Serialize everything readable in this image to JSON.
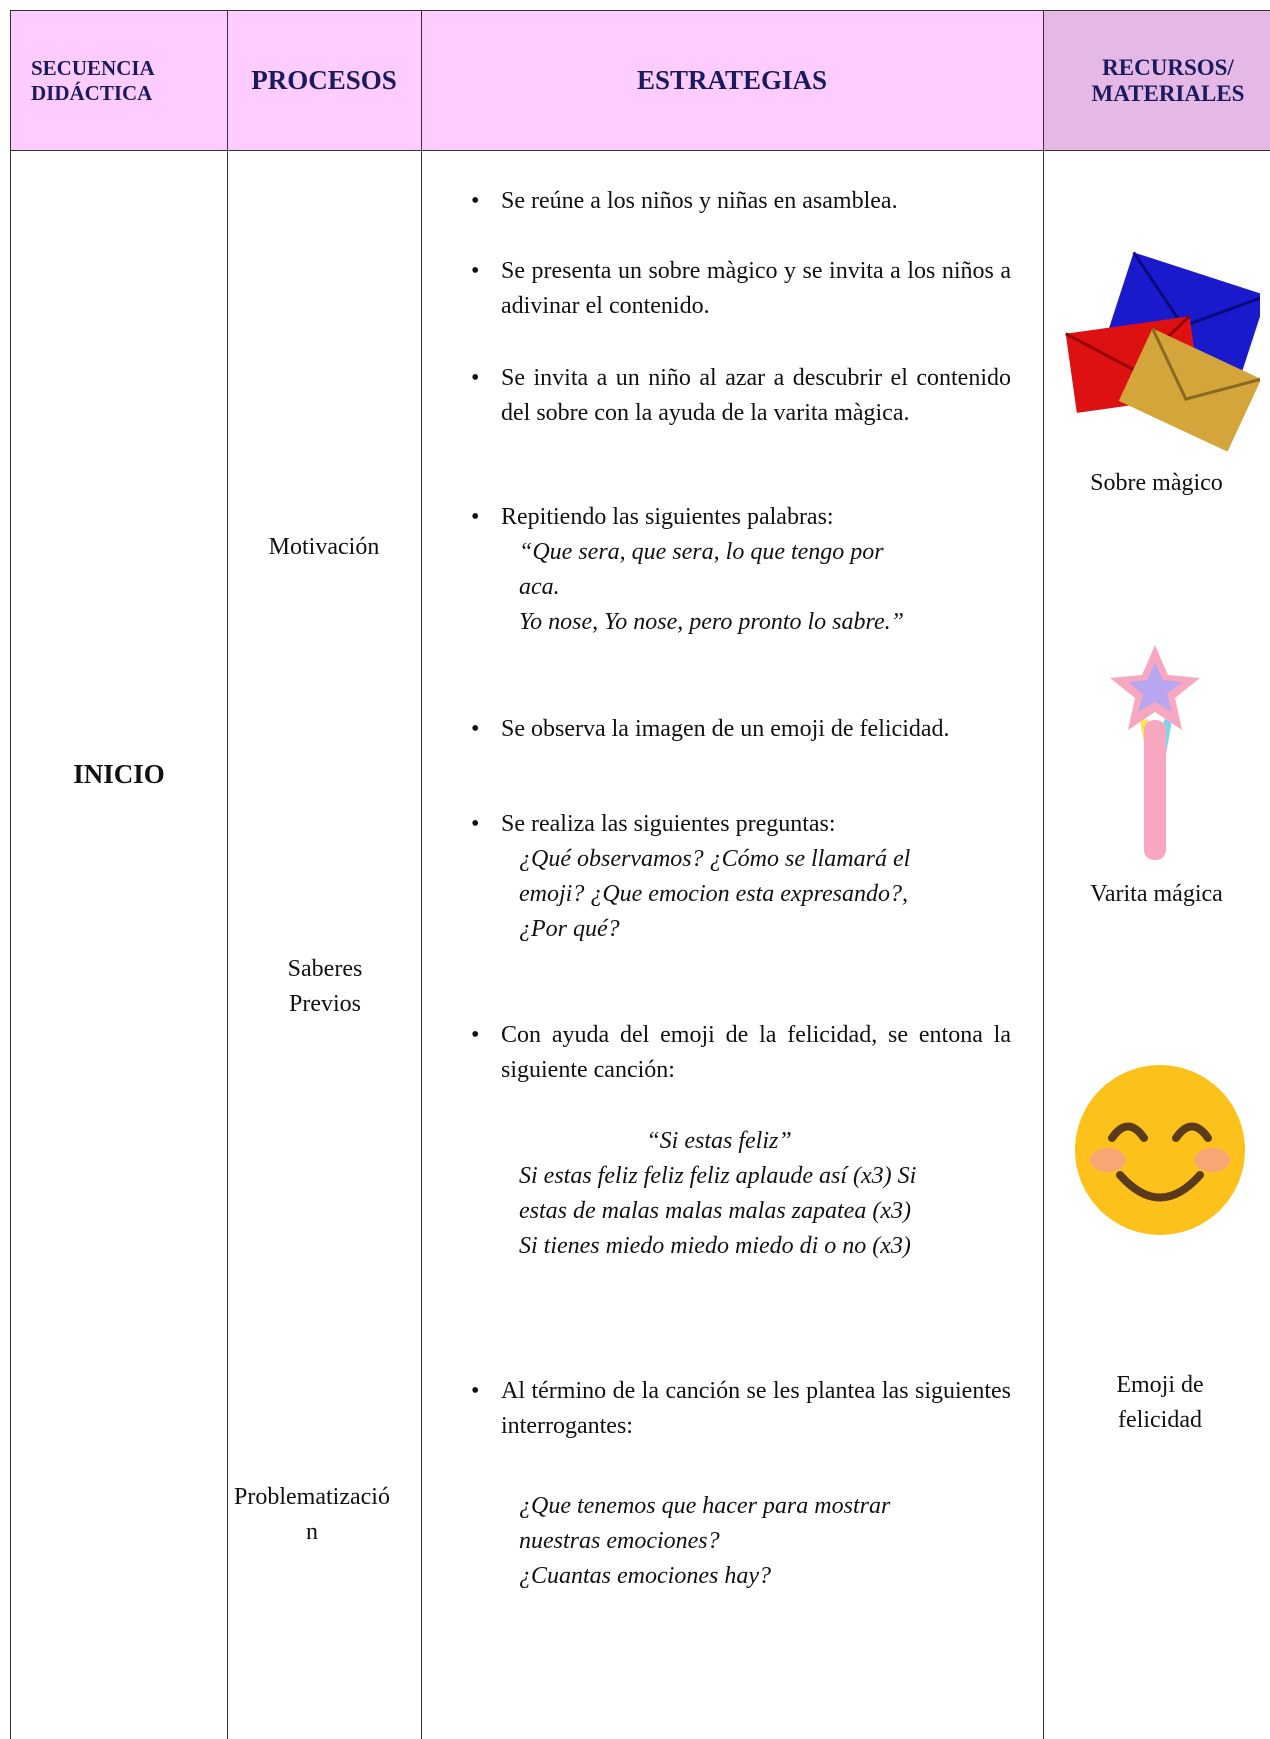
{
  "header": [
    "SECUENCIA DIDÁCTICA",
    "PROCESOS",
    "ESTRATEGIAS",
    "RECURSOS/ MATERIALES"
  ],
  "stage": "INICIO",
  "processes": [
    "Motivación",
    "Saberes Previos",
    "Problematización"
  ],
  "strategies": [
    {
      "text": "Se reúne a los niños y niñas en asamblea."
    },
    {
      "text": "Se presenta un sobre màgico y se invita a los niños a adivinar el contenido."
    },
    {
      "text": "Se invita a un niño al azar a descubrir el contenido del sobre con la ayuda de la varita màgica."
    },
    {
      "text": "Repitiendo las siguientes palabras:",
      "quote": [
        "“Que sera, que sera, lo que tengo por aca.",
        "Yo nose, Yo nose, pero pronto lo sabre.”"
      ]
    },
    {
      "text": "Se observa la imagen de un emoji de felicidad."
    },
    {
      "text": "Se realiza las siguientes preguntas:",
      "quote": [
        "¿Qué observamos? ¿Cómo se llamará el emoji? ¿Que emocion esta expresando?, ¿Por qué?"
      ]
    },
    {
      "text": "Con ayuda del emoji de la felicidad, se entona la siguiente canción:",
      "quote_title": "“Si estas feliz”",
      "quote": [
        "Si estas feliz feliz feliz aplaude así (x3) Si estas de malas malas malas zapatea (x3) Si tienes miedo miedo miedo di o no (x3)"
      ]
    },
    {
      "text": "Al término de la canción se les plantea las siguientes interrogantes:",
      "quote": [
        "¿Que tenemos que hacer para mostrar nuestras emociones?",
        "¿Cuantas emociones hay?"
      ]
    }
  ],
  "resources": [
    "Sobre màgico",
    "Varita mágica",
    "Emoji de felicidad"
  ]
}
